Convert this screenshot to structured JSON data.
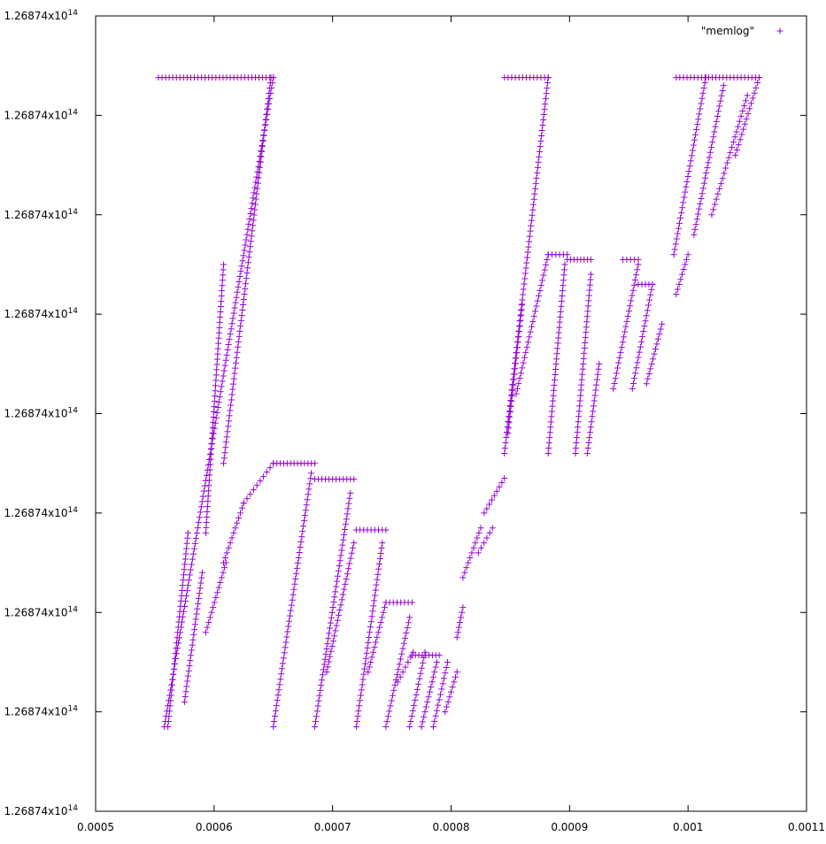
{
  "chart_data": {
    "type": "scatter",
    "marker": "plus",
    "color": "#9400d3",
    "legend": {
      "position": "top-right",
      "entries": [
        "\"memlog\""
      ]
    },
    "xlim": [
      0.0005,
      0.0011
    ],
    "ylim": [
      0,
      8
    ],
    "x_tick_labels": [
      "0.0005",
      "0.0006",
      "0.0007",
      "0.0008",
      "0.0009",
      "0.001",
      "0.0011"
    ],
    "x_ticks": [
      0.0005,
      0.0006,
      0.0007,
      0.0008,
      0.0009,
      0.001,
      0.0011
    ],
    "y_tick_labels": [
      "1.26874x10",
      "1.26874x10",
      "1.26874x10",
      "1.26874x10",
      "1.26874x10",
      "1.26874x10",
      "1.26874x10",
      "1.26874x10",
      "1.26874x10"
    ],
    "y_tick_exponent": "14",
    "y_ticks": [
      0,
      1,
      2,
      3,
      4,
      5,
      6,
      7,
      8
    ],
    "grid": false,
    "series": [
      {
        "name": "\"memlog\"",
        "segments": [
          {
            "kind": "h",
            "x": [
              0.000553,
              0.00065
            ],
            "y": 7.38
          },
          {
            "kind": "line",
            "x": [
              0.000558,
              0.00065
            ],
            "y": [
              0.85,
              7.38
            ]
          },
          {
            "kind": "line",
            "x": [
              0.000561,
              0.000578
            ],
            "y": [
              0.85,
              2.8
            ]
          },
          {
            "kind": "line",
            "x": [
              0.000575,
              0.00059
            ],
            "y": [
              1.1,
              2.4
            ]
          },
          {
            "kind": "line",
            "x": [
              0.000593,
              0.000608
            ],
            "y": [
              2.8,
              5.5
            ]
          },
          {
            "kind": "line",
            "x": [
              0.000593,
              0.00061
            ],
            "y": [
              1.8,
              2.5
            ]
          },
          {
            "kind": "line",
            "x": [
              0.000608,
              0.000625
            ],
            "y": [
              2.5,
              3.1
            ]
          },
          {
            "kind": "line",
            "x": [
              0.000625,
              0.00065
            ],
            "y": [
              3.1,
              3.5
            ]
          },
          {
            "kind": "line",
            "x": [
              0.000608,
              0.000648
            ],
            "y": [
              3.5,
              7.38
            ]
          },
          {
            "kind": "h",
            "x": [
              0.00065,
              0.000685
            ],
            "y": 3.5
          },
          {
            "kind": "line",
            "x": [
              0.00065,
              0.000682
            ],
            "y": [
              0.85,
              3.4
            ]
          },
          {
            "kind": "h",
            "x": [
              0.000685,
              0.000718
            ],
            "y": 3.34
          },
          {
            "kind": "line",
            "x": [
              0.000685,
              0.000715
            ],
            "y": [
              0.85,
              3.2
            ]
          },
          {
            "kind": "line",
            "x": [
              0.000695,
              0.000718
            ],
            "y": [
              1.4,
              2.7
            ]
          },
          {
            "kind": "h",
            "x": [
              0.00072,
              0.000745
            ],
            "y": 2.83
          },
          {
            "kind": "line",
            "x": [
              0.00072,
              0.000742
            ],
            "y": [
              0.85,
              2.7
            ]
          },
          {
            "kind": "line",
            "x": [
              0.00073,
              0.000745
            ],
            "y": [
              1.4,
              2.1
            ]
          },
          {
            "kind": "h",
            "x": [
              0.000745,
              0.000767
            ],
            "y": 2.1
          },
          {
            "kind": "line",
            "x": [
              0.000745,
              0.000765
            ],
            "y": [
              0.85,
              1.95
            ]
          },
          {
            "kind": "line",
            "x": [
              0.000755,
              0.000768
            ],
            "y": [
              1.3,
              1.6
            ]
          },
          {
            "kind": "h",
            "x": [
              0.000767,
              0.00079
            ],
            "y": 1.57
          },
          {
            "kind": "line",
            "x": [
              0.000765,
              0.000778
            ],
            "y": [
              0.85,
              1.6
            ]
          },
          {
            "kind": "line",
            "x": [
              0.000775,
              0.000788
            ],
            "y": [
              0.85,
              1.5
            ]
          },
          {
            "kind": "line",
            "x": [
              0.000785,
              0.000797
            ],
            "y": [
              0.85,
              1.5
            ]
          },
          {
            "kind": "line",
            "x": [
              0.000795,
              0.000805
            ],
            "y": [
              1.0,
              1.4
            ]
          },
          {
            "kind": "line",
            "x": [
              0.000805,
              0.00081
            ],
            "y": [
              1.75,
              2.05
            ]
          },
          {
            "kind": "line",
            "x": [
              0.00081,
              0.000825
            ],
            "y": [
              2.35,
              2.85
            ]
          },
          {
            "kind": "line",
            "x": [
              0.000823,
              0.000835
            ],
            "y": [
              2.6,
              2.85
            ]
          },
          {
            "kind": "line",
            "x": [
              0.000828,
              0.000845
            ],
            "y": [
              3.0,
              3.35
            ]
          },
          {
            "kind": "line",
            "x": [
              0.000845,
              0.000882
            ],
            "y": [
              3.6,
              7.38
            ]
          },
          {
            "kind": "h",
            "x": [
              0.000845,
              0.000882
            ],
            "y": 7.38
          },
          {
            "kind": "line",
            "x": [
              0.000848,
              0.00086
            ],
            "y": [
              3.8,
              5.1
            ]
          },
          {
            "kind": "line",
            "x": [
              0.000855,
              0.000882
            ],
            "y": [
              4.2,
              5.6
            ]
          },
          {
            "kind": "h",
            "x": [
              0.000882,
              0.000898
            ],
            "y": 5.6
          },
          {
            "kind": "line",
            "x": [
              0.000882,
              0.000896
            ],
            "y": [
              3.6,
              5.5
            ]
          },
          {
            "kind": "h",
            "x": [
              0.000898,
              0.000918
            ],
            "y": 5.55
          },
          {
            "kind": "line",
            "x": [
              0.000905,
              0.000918
            ],
            "y": [
              3.6,
              5.4
            ]
          },
          {
            "kind": "line",
            "x": [
              0.000915,
              0.000925
            ],
            "y": [
              3.6,
              4.5
            ]
          },
          {
            "kind": "h",
            "x": [
              0.000945,
              0.000958
            ],
            "y": 5.55
          },
          {
            "kind": "line",
            "x": [
              0.000937,
              0.000958
            ],
            "y": [
              4.25,
              5.5
            ]
          },
          {
            "kind": "h",
            "x": [
              0.000958,
              0.00097
            ],
            "y": 5.3
          },
          {
            "kind": "line",
            "x": [
              0.000953,
              0.00097
            ],
            "y": [
              4.25,
              5.3
            ]
          },
          {
            "kind": "line",
            "x": [
              0.000965,
              0.000978
            ],
            "y": [
              4.3,
              4.9
            ]
          },
          {
            "kind": "line",
            "x": [
              0.00099,
              0.001
            ],
            "y": [
              5.2,
              5.6
            ]
          },
          {
            "kind": "line",
            "x": [
              0.000988,
              0.001015
            ],
            "y": [
              5.6,
              7.38
            ]
          },
          {
            "kind": "h",
            "x": [
              0.00099,
              0.00106
            ],
            "y": 7.38
          },
          {
            "kind": "line",
            "x": [
              0.001005,
              0.00103
            ],
            "y": [
              5.8,
              7.3
            ]
          },
          {
            "kind": "line",
            "x": [
              0.00102,
              0.00105
            ],
            "y": [
              6.0,
              7.2
            ]
          },
          {
            "kind": "line",
            "x": [
              0.00104,
              0.00106
            ],
            "y": [
              6.6,
              7.38
            ]
          }
        ]
      }
    ]
  }
}
